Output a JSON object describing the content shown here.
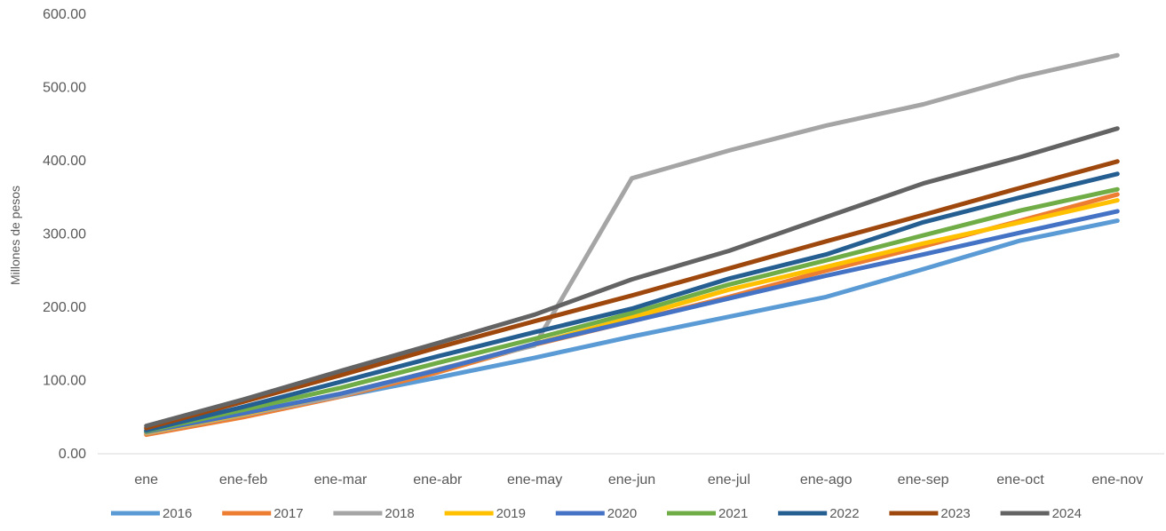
{
  "chart_data": {
    "type": "line",
    "ylabel": "Millones de pesos",
    "xlabel": "",
    "title": "",
    "ylim": [
      0,
      600
    ],
    "yticks": [
      0,
      100,
      200,
      300,
      400,
      500,
      600
    ],
    "ytick_labels": [
      "0.00",
      "100.00",
      "200.00",
      "300.00",
      "400.00",
      "500.00",
      "600.00"
    ],
    "categories": [
      "ene",
      "ene-feb",
      "ene-mar",
      "ene-abr",
      "ene-may",
      "ene-jun",
      "ene-jul",
      "ene-ago",
      "ene-sep",
      "ene-oct",
      "ene-nov"
    ],
    "grid": false,
    "legend_position": "bottom",
    "series": [
      {
        "name": "2016",
        "color": "#5B9BD5",
        "values": [
          30,
          52,
          78,
          104,
          131,
          160,
          187,
          214,
          252,
          291,
          318
        ]
      },
      {
        "name": "2017",
        "color": "#ED7D31",
        "values": [
          26,
          50,
          78,
          111,
          149,
          181,
          214,
          250,
          283,
          318,
          354
        ]
      },
      {
        "name": "2018",
        "color": "#A5A5A5",
        "values": [
          28,
          53,
          79,
          115,
          148,
          376,
          414,
          448,
          477,
          514,
          544
        ]
      },
      {
        "name": "2019",
        "color": "#FFC000",
        "values": [
          29,
          54,
          82,
          114,
          150,
          186,
          224,
          255,
          287,
          316,
          346
        ]
      },
      {
        "name": "2020",
        "color": "#4472C4",
        "values": [
          30,
          55,
          82,
          114,
          150,
          181,
          212,
          243,
          272,
          302,
          331
        ]
      },
      {
        "name": "2021",
        "color": "#70AD47",
        "values": [
          31,
          60,
          90,
          124,
          157,
          192,
          231,
          264,
          298,
          332,
          361
        ]
      },
      {
        "name": "2022",
        "color": "#255E91",
        "values": [
          32,
          64,
          98,
          133,
          166,
          198,
          239,
          272,
          316,
          350,
          382
        ]
      },
      {
        "name": "2023",
        "color": "#9E480E",
        "values": [
          35,
          71,
          107,
          145,
          181,
          216,
          253,
          290,
          326,
          363,
          399
        ]
      },
      {
        "name": "2024",
        "color": "#636363",
        "values": [
          38,
          74,
          113,
          151,
          190,
          238,
          277,
          323,
          369,
          405,
          444
        ]
      }
    ]
  }
}
